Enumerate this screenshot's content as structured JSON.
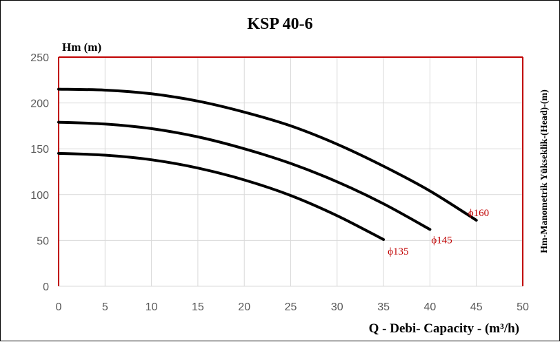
{
  "chart_data": {
    "type": "line",
    "title": "KSP 40-6",
    "ylabel": "Hm (m)",
    "xlabel": "Q - Debi- Capacity - (m³/h)",
    "right_label": "Hm-Manometrik Yükseklik-(Head)-(m)",
    "xlim": [
      0,
      50
    ],
    "ylim": [
      0,
      250
    ],
    "x_ticks": [
      0,
      5,
      10,
      15,
      20,
      25,
      30,
      35,
      40,
      45,
      50
    ],
    "y_ticks": [
      0,
      50,
      100,
      150,
      200,
      250
    ],
    "grid": true,
    "legend": "none",
    "colors": {
      "curve": "#000000",
      "frame": "#c00000",
      "grid": "#d9d9d9",
      "label": "#c00000"
    },
    "series": [
      {
        "label": "ϕ135",
        "x": [
          0,
          5,
          10,
          15,
          20,
          25,
          30,
          35
        ],
        "y": [
          145,
          143,
          138,
          129,
          116,
          99,
          77,
          51
        ]
      },
      {
        "label": "ϕ145",
        "x": [
          0,
          5,
          10,
          15,
          20,
          25,
          30,
          35,
          40
        ],
        "y": [
          179,
          177,
          172,
          163,
          150,
          134,
          114,
          90,
          62
        ]
      },
      {
        "label": "ϕ160",
        "x": [
          0,
          5,
          10,
          15,
          20,
          25,
          30,
          35,
          40,
          45
        ],
        "y": [
          215,
          214,
          210,
          202,
          190,
          175,
          155,
          131,
          104,
          72
        ]
      }
    ]
  }
}
